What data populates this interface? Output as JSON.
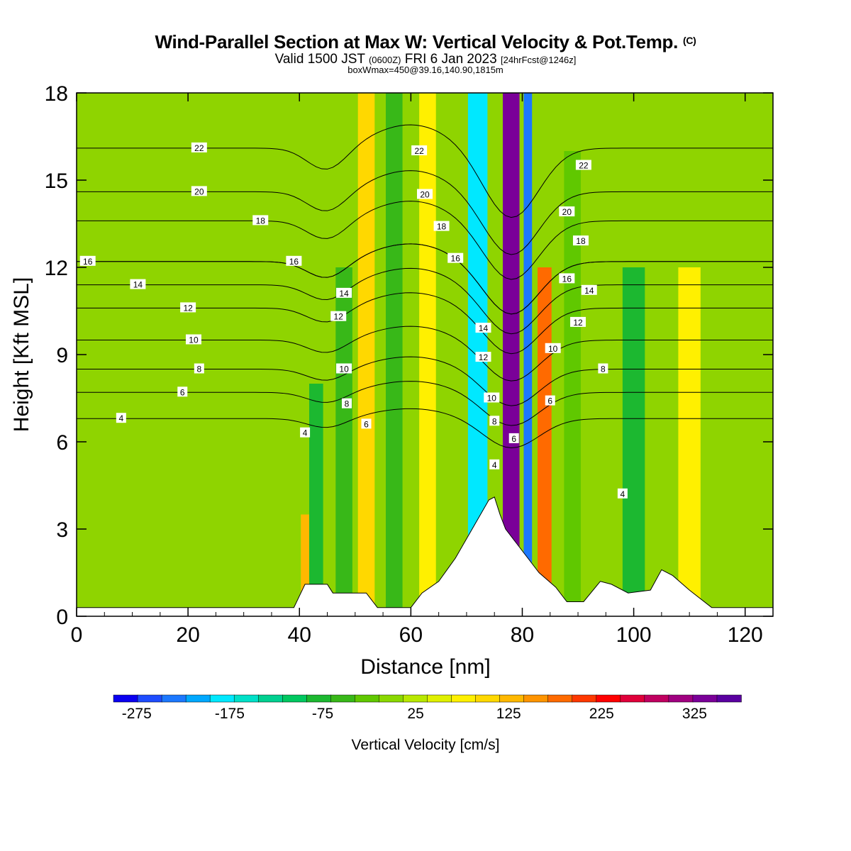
{
  "header": {
    "title": "Wind-Parallel Section at Max W: Vertical Velocity & Pot.Temp.",
    "copyright": "(C)",
    "valid_prefix": "Valid 1500 JST",
    "valid_utc": "(0600Z)",
    "valid_date": "FRI 6 Jan 2023",
    "forecast": "[24hrFcst@1246z]",
    "box_info": "boxWmax=450@39.16,140.90,1815m"
  },
  "colors": {
    "background": "#8fd400",
    "terrain": "#ffffff",
    "contour": "#000000",
    "scale": [
      "#0a00f0",
      "#1e4cff",
      "#1c78ff",
      "#00a8ff",
      "#00e8ff",
      "#00e0c8",
      "#00d090",
      "#00c860",
      "#1cb830",
      "#38b818",
      "#60c800",
      "#8ad800",
      "#b8e800",
      "#e0f000",
      "#fff000",
      "#ffd800",
      "#ffb800",
      "#ff9400",
      "#ff6a00",
      "#ff3800",
      "#ff0000",
      "#e0003a",
      "#c00060",
      "#a00080",
      "#7a0098",
      "#5a00a0"
    ]
  },
  "chart_data": {
    "type": "heatmap",
    "xlabel": "Distance [nm]",
    "ylabel": "Height [Kft MSL]",
    "xlim": [
      0,
      125
    ],
    "ylim": [
      0,
      18
    ],
    "x_ticks": [
      "0",
      "20",
      "40",
      "60",
      "80",
      "100",
      "120"
    ],
    "y_ticks": [
      "0",
      "3",
      "6",
      "9",
      "12",
      "15",
      "18"
    ],
    "colorbar": {
      "label": "Vertical Velocity [cm/s]",
      "tick_labels": [
        "-275",
        "-175",
        "-75",
        "25",
        "125",
        "225",
        "325"
      ],
      "range": [
        -300,
        375
      ],
      "step": 25
    },
    "velocity_bands": [
      {
        "center_x": 41.5,
        "width": 2.5,
        "value": 110,
        "y_max": 3.5
      },
      {
        "center_x": 43,
        "width": 2.5,
        "value": -100,
        "y_max": 8
      },
      {
        "center_x": 48,
        "width": 3,
        "value": -60,
        "y_max": 12
      },
      {
        "center_x": 52,
        "width": 3,
        "value": 90,
        "y_max": 18
      },
      {
        "center_x": 57,
        "width": 3,
        "value": -70,
        "y_max": 18
      },
      {
        "center_x": 63,
        "width": 3,
        "value": 70,
        "y_max": 18
      },
      {
        "center_x": 72,
        "width": 3.5,
        "value": -200,
        "y_max": 18
      },
      {
        "center_x": 78,
        "width": 3,
        "value": 300,
        "y_max": 18
      },
      {
        "center_x": 81,
        "width": 1.5,
        "value": -250,
        "y_max": 18
      },
      {
        "center_x": 84,
        "width": 2.5,
        "value": 170,
        "y_max": 12
      },
      {
        "center_x": 89,
        "width": 3,
        "value": -50,
        "y_max": 16
      },
      {
        "center_x": 100,
        "width": 4,
        "value": -80,
        "y_max": 12
      },
      {
        "center_x": 110,
        "width": 4,
        "value": 60,
        "y_max": 12
      }
    ],
    "terrain_profile": [
      {
        "x": 0,
        "h": 0.3
      },
      {
        "x": 39,
        "h": 0.3
      },
      {
        "x": 40,
        "h": 0.7
      },
      {
        "x": 41,
        "h": 1.1
      },
      {
        "x": 45,
        "h": 1.1
      },
      {
        "x": 46,
        "h": 0.8
      },
      {
        "x": 52,
        "h": 0.8
      },
      {
        "x": 54,
        "h": 0.3
      },
      {
        "x": 60,
        "h": 0.3
      },
      {
        "x": 62,
        "h": 0.8
      },
      {
        "x": 65,
        "h": 1.2
      },
      {
        "x": 68,
        "h": 2.0
      },
      {
        "x": 71,
        "h": 3.0
      },
      {
        "x": 74,
        "h": 4.0
      },
      {
        "x": 75,
        "h": 4.1
      },
      {
        "x": 76,
        "h": 3.5
      },
      {
        "x": 77,
        "h": 3.0
      },
      {
        "x": 79,
        "h": 2.5
      },
      {
        "x": 81,
        "h": 2.0
      },
      {
        "x": 83,
        "h": 1.5
      },
      {
        "x": 86,
        "h": 1.0
      },
      {
        "x": 88,
        "h": 0.5
      },
      {
        "x": 91,
        "h": 0.5
      },
      {
        "x": 94,
        "h": 1.2
      },
      {
        "x": 96,
        "h": 1.1
      },
      {
        "x": 99,
        "h": 0.8
      },
      {
        "x": 103,
        "h": 0.9
      },
      {
        "x": 105,
        "h": 1.6
      },
      {
        "x": 107,
        "h": 1.4
      },
      {
        "x": 110,
        "h": 0.9
      },
      {
        "x": 114,
        "h": 0.3
      },
      {
        "x": 125,
        "h": 0.3
      }
    ],
    "isentropes": [
      {
        "label": "4",
        "base_height": 6.8,
        "label_x": 8
      },
      {
        "label": "6",
        "base_height": 7.7,
        "label_x": 19
      },
      {
        "label": "8",
        "base_height": 8.5,
        "label_x": 22
      },
      {
        "label": "10",
        "base_height": 9.5,
        "label_x": 21
      },
      {
        "label": "12",
        "base_height": 10.6,
        "label_x": 20
      },
      {
        "label": "14",
        "base_height": 11.4,
        "label_x": 11
      },
      {
        "label": "16",
        "base_height": 12.2,
        "label_x": 2
      },
      {
        "label": "16",
        "base_height": 12.2,
        "label_x": 39
      },
      {
        "label": "18",
        "base_height": 13.6,
        "label_x": 33
      },
      {
        "label": "20",
        "base_height": 14.6,
        "label_x": 22
      },
      {
        "label": "22",
        "base_height": 16.1,
        "label_x": 22
      }
    ],
    "contour_labels": [
      {
        "label": "22",
        "x": 61.5,
        "y": 16.0
      },
      {
        "label": "20",
        "x": 62.5,
        "y": 14.5
      },
      {
        "label": "18",
        "x": 65.5,
        "y": 13.4
      },
      {
        "label": "16",
        "x": 68,
        "y": 12.3
      },
      {
        "label": "14",
        "x": 48,
        "y": 11.1
      },
      {
        "label": "12",
        "x": 47,
        "y": 10.3
      },
      {
        "label": "10",
        "x": 48,
        "y": 8.5
      },
      {
        "label": "8",
        "x": 48.5,
        "y": 7.3
      },
      {
        "label": "6",
        "x": 52,
        "y": 6.6
      },
      {
        "label": "4",
        "x": 41,
        "y": 6.3
      },
      {
        "label": "14",
        "x": 73,
        "y": 9.9
      },
      {
        "label": "12",
        "x": 73,
        "y": 8.9
      },
      {
        "label": "10",
        "x": 74.5,
        "y": 7.5
      },
      {
        "label": "8",
        "x": 75,
        "y": 6.7
      },
      {
        "label": "6",
        "x": 78.5,
        "y": 6.1
      },
      {
        "label": "4",
        "x": 75,
        "y": 5.2
      },
      {
        "label": "22",
        "x": 91,
        "y": 15.5
      },
      {
        "label": "20",
        "x": 88,
        "y": 13.9
      },
      {
        "label": "18",
        "x": 90.5,
        "y": 12.9
      },
      {
        "label": "16",
        "x": 88,
        "y": 11.6
      },
      {
        "label": "14",
        "x": 92,
        "y": 11.2
      },
      {
        "label": "12",
        "x": 90,
        "y": 10.1
      },
      {
        "label": "10",
        "x": 85.5,
        "y": 9.2
      },
      {
        "label": "8",
        "x": 94.5,
        "y": 8.5
      },
      {
        "label": "6",
        "x": 85,
        "y": 7.4
      },
      {
        "label": "4",
        "x": 98,
        "y": 4.2
      }
    ]
  }
}
